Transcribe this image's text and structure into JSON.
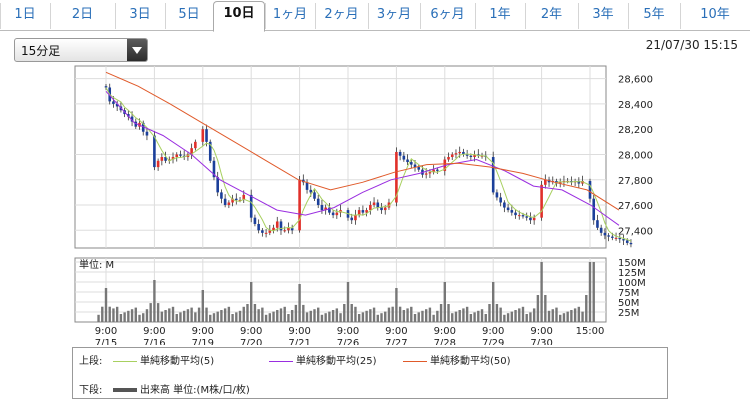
{
  "tabs": [
    "1日",
    "2日",
    "3日",
    "5日",
    "10日",
    "1ヶ月",
    "2ヶ月",
    "3ヶ月",
    "6ヶ月",
    "1年",
    "2年",
    "3年",
    "5年",
    "10年"
  ],
  "active_tab": "10日",
  "interval_select": {
    "value": "15分足"
  },
  "timestamp": "21/07/30 15:15",
  "legend": {
    "upper_label": "上段:",
    "lower_label": "下段:",
    "items": [
      {
        "name": "単純移動平均(5)",
        "color": "#a8d060"
      },
      {
        "name": "単純移動平均(25)",
        "color": "#9a2ee0"
      },
      {
        "name": "単純移動平均(50)",
        "color": "#e05a2a"
      }
    ],
    "volume_item": "出来高 単位:(M株/口/枚)",
    "volume_color": "#555555"
  },
  "chart_data": {
    "type": "candlestick",
    "price_ticks": [
      27400,
      27600,
      27800,
      28000,
      28200,
      28400,
      28600
    ],
    "price_tick_labels": [
      "27,400",
      "27,600",
      "27,800",
      "28,000",
      "28,200",
      "28,400",
      "28,600"
    ],
    "price_range": [
      27260,
      28700
    ],
    "day_labels": [
      {
        "time": "9:00",
        "date": "7/15"
      },
      {
        "time": "9:00",
        "date": "7/16"
      },
      {
        "time": "9:00",
        "date": "7/19"
      },
      {
        "time": "9:00",
        "date": "7/20"
      },
      {
        "time": "9:00",
        "date": "7/21"
      },
      {
        "time": "9:00",
        "date": "7/26"
      },
      {
        "time": "9:00",
        "date": "7/27"
      },
      {
        "time": "9:00",
        "date": "7/28"
      },
      {
        "time": "9:00",
        "date": "7/29"
      },
      {
        "time": "9:00",
        "date": "7/30"
      },
      {
        "time": "15:00",
        "date": ""
      }
    ],
    "daily_path": [
      [
        28530,
        28420,
        28400,
        28380,
        28350,
        28320,
        28300,
        28260,
        28220,
        28250,
        28180,
        28150
      ],
      [
        27900,
        27950,
        27980,
        27950,
        27960,
        27980,
        28000,
        27990,
        27980,
        28000,
        28050,
        28100
      ],
      [
        28200,
        28100,
        27950,
        27820,
        27700,
        27650,
        27600,
        27620,
        27650,
        27640,
        27640,
        27680
      ],
      [
        27500,
        27450,
        27400,
        27380,
        27380,
        27400,
        27420,
        27470,
        27400,
        27400,
        27420,
        27400
      ],
      [
        27800,
        27780,
        27720,
        27700,
        27650,
        27600,
        27560,
        27580,
        27540,
        27520,
        27540,
        27560
      ],
      [
        27500,
        27480,
        27520,
        27560,
        27540,
        27560,
        27600,
        27620,
        27580,
        27560,
        27580,
        27620
      ],
      [
        28020,
        27990,
        27960,
        27940,
        27920,
        27900,
        27880,
        27840,
        27850,
        27860,
        27880,
        27870
      ],
      [
        27960,
        27980,
        28000,
        28010,
        28020,
        28000,
        27990,
        27980,
        28000,
        27990,
        27990,
        27980
      ],
      [
        27700,
        27660,
        27620,
        27580,
        27560,
        27540,
        27520,
        27520,
        27510,
        27500,
        27480,
        27500
      ],
      [
        27760,
        27800,
        27780,
        27790,
        27770,
        27780,
        27790,
        27790,
        27780,
        27790,
        27770,
        27790
      ],
      [
        27650,
        27480,
        27420,
        27380,
        27360,
        27350,
        27340,
        27340,
        27330,
        27320,
        27300,
        27290
      ]
    ],
    "ma_long_points": [
      28650,
      28540,
      28400,
      28250,
      28100,
      27950,
      27800,
      27720,
      27780,
      27860,
      27920,
      27930,
      27900,
      27850,
      27780,
      27720,
      27560
    ],
    "ma_mid_points": [
      28500,
      28250,
      28150,
      28000,
      27800,
      27680,
      27560,
      27520,
      27580,
      27700,
      27800,
      27850,
      27920,
      27960,
      27870,
      27750,
      27720,
      27600,
      27440
    ],
    "volume_ticks": [
      25,
      50,
      75,
      100,
      125,
      150
    ],
    "volume_tick_labels": [
      "25M",
      "50M",
      "75M",
      "100M",
      "125M",
      "150M"
    ],
    "volume_max": 160,
    "volume_peaks": [
      85,
      105,
      80,
      100,
      95,
      100,
      85,
      100,
      100,
      150,
      150
    ],
    "volume_unit_label": "単位: M"
  }
}
